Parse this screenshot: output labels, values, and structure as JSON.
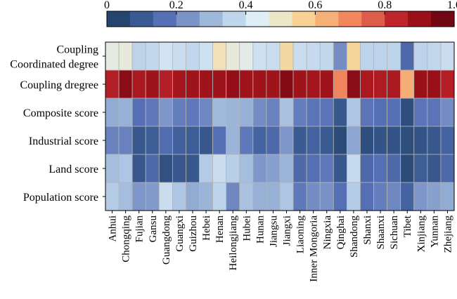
{
  "chart_data": {
    "type": "heatmap",
    "title": "",
    "xlabel": "",
    "ylabel": "",
    "colorbar": {
      "range": [
        0,
        1
      ],
      "ticks": [
        "0",
        "0.2",
        "0.4",
        "0.6",
        "0.8",
        "1.0"
      ],
      "tick_values": [
        0,
        0.2,
        0.4,
        0.6,
        0.8,
        1.0
      ],
      "colors": [
        "#25456f",
        "#3a5a93",
        "#5670b5",
        "#7b93c7",
        "#9eb8da",
        "#c0d6ec",
        "#deedf6",
        "#eee6c8",
        "#f7d292",
        "#f6b078",
        "#f2875e",
        "#de5d4a",
        "#c0252c",
        "#9b1018",
        "#730613"
      ]
    },
    "rows": [
      {
        "label_lines": [
          "Coupling",
          "Coordinated degree"
        ]
      },
      {
        "label_lines": [
          "Coupling dregree"
        ]
      },
      {
        "label_lines": [
          "Composite score"
        ]
      },
      {
        "label_lines": [
          "Industrial score"
        ]
      },
      {
        "label_lines": [
          "Land score"
        ]
      },
      {
        "label_lines": [
          "Population score"
        ]
      }
    ],
    "columns": [
      "Anhui",
      "Chongqing",
      "Fujian",
      "Gansu",
      "Guangdong",
      "Guangxi",
      "Guizhou",
      "Hebei",
      "Henan",
      "Heilongjiang",
      "Hubei",
      "Hunan",
      "Jiangsu",
      "Jiangxi",
      "Liaoning",
      "Inner Mongoria",
      "Ningxia",
      "Qinghai",
      "Shandong",
      "Shanxi",
      "Shaanxi",
      "Sichuan",
      "Tibet",
      "Xinjiang",
      "Yunnan",
      "Zhejiang"
    ],
    "values": [
      [
        0.46,
        0.47,
        0.35,
        0.36,
        0.4,
        0.38,
        0.36,
        0.39,
        0.52,
        0.47,
        0.45,
        0.39,
        0.38,
        0.55,
        0.38,
        0.37,
        0.36,
        0.2,
        0.56,
        0.35,
        0.35,
        0.35,
        0.12,
        0.35,
        0.36,
        0.38
      ],
      [
        0.88,
        0.96,
        0.9,
        0.92,
        0.88,
        0.91,
        0.92,
        0.92,
        0.92,
        0.94,
        0.92,
        0.92,
        0.92,
        0.97,
        0.92,
        0.91,
        0.92,
        0.72,
        0.96,
        0.9,
        0.89,
        0.9,
        0.65,
        0.93,
        0.93,
        0.88
      ],
      [
        0.26,
        0.27,
        0.14,
        0.16,
        0.22,
        0.17,
        0.16,
        0.19,
        0.29,
        0.28,
        0.27,
        0.2,
        0.18,
        0.31,
        0.17,
        0.15,
        0.15,
        0.06,
        0.32,
        0.15,
        0.14,
        0.14,
        0.03,
        0.15,
        0.15,
        0.2
      ],
      [
        0.18,
        0.18,
        0.06,
        0.08,
        0.13,
        0.09,
        0.08,
        0.06,
        0.14,
        0.28,
        0.16,
        0.1,
        0.12,
        0.22,
        0.07,
        0.1,
        0.07,
        0.02,
        0.25,
        0.03,
        0.05,
        0.05,
        0.03,
        0.05,
        0.06,
        0.1
      ],
      [
        0.3,
        0.32,
        0.06,
        0.12,
        0.04,
        0.06,
        0.06,
        0.33,
        0.38,
        0.34,
        0.3,
        0.22,
        0.24,
        0.28,
        0.12,
        0.14,
        0.16,
        0.06,
        0.37,
        0.12,
        0.14,
        0.12,
        0.02,
        0.08,
        0.06,
        0.12
      ],
      [
        0.33,
        0.3,
        0.22,
        0.23,
        0.38,
        0.32,
        0.26,
        0.28,
        0.35,
        0.19,
        0.31,
        0.27,
        0.27,
        0.32,
        0.16,
        0.2,
        0.21,
        0.14,
        0.33,
        0.14,
        0.17,
        0.19,
        0.1,
        0.22,
        0.24,
        0.26
      ]
    ]
  }
}
